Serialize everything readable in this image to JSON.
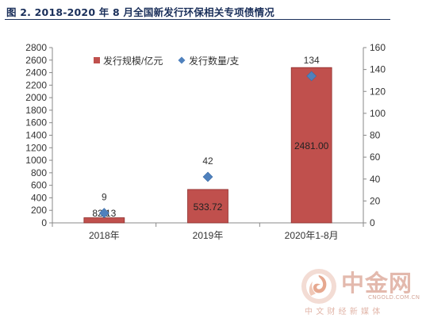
{
  "figure": {
    "title": "图 2. 2018-2020 年 8 月全国新发行环保相关专项债情况"
  },
  "colors": {
    "bar": "#c0504d",
    "bar_border": "#8e2e2c",
    "marker": "#4f81bd",
    "axis": "#888888",
    "text": "#333333"
  },
  "chart_data": {
    "type": "bar",
    "categories": [
      "2018年",
      "2019年",
      "2020年1-8月"
    ],
    "series": [
      {
        "name": "发行规模/亿元",
        "type": "bar",
        "axis": "left",
        "values": [
          82.13,
          533.72,
          2481.0
        ],
        "labels": [
          "82.13",
          "533.72",
          "2481.00"
        ]
      },
      {
        "name": "发行数量/支",
        "type": "scatter",
        "marker": "diamond",
        "axis": "right",
        "values": [
          9,
          42,
          134
        ],
        "labels": [
          "9",
          "42",
          "134"
        ]
      }
    ],
    "y_left": {
      "lim": [
        0,
        2800
      ],
      "ticks": [
        "0",
        "200",
        "400",
        "600",
        "800",
        "1000",
        "1200",
        "1400",
        "1600",
        "1800",
        "2000",
        "2200",
        "2400",
        "2600",
        "2800"
      ]
    },
    "y_right": {
      "lim": [
        0,
        160
      ],
      "ticks": [
        "0",
        "20",
        "40",
        "60",
        "80",
        "100",
        "120",
        "140",
        "160"
      ]
    },
    "legend_position": "top-center",
    "grid": false
  },
  "watermark": {
    "brand": "中金网",
    "domain": "CNGOLD.COM.CN",
    "slogan": "中文财经新媒体"
  }
}
